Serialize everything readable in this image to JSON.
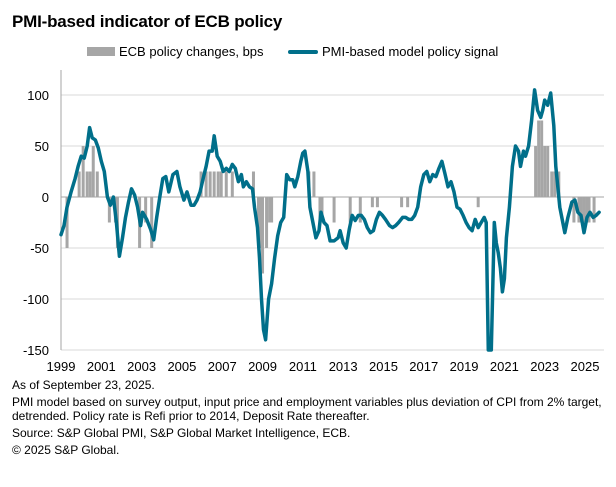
{
  "chart_data": {
    "type": "bar+line",
    "title": "PMI-based indicator of ECB policy",
    "xlabel": "",
    "ylabel": "",
    "ylim": [
      -150,
      125
    ],
    "xlim": [
      1999.0,
      2025.75
    ],
    "yticks": [
      100,
      50,
      0,
      -50,
      -100,
      -150
    ],
    "ytick_labels": [
      "100",
      "50",
      "0",
      "-50",
      "-100",
      "-150"
    ],
    "xticks": [
      1999,
      2001,
      2003,
      2005,
      2007,
      2009,
      2011,
      2013,
      2015,
      2017,
      2019,
      2021,
      2023,
      2025
    ],
    "xtick_labels": [
      "1999",
      "2001",
      "2003",
      "2005",
      "2007",
      "2009",
      "2011",
      "2013",
      "2015",
      "2017",
      "2019",
      "2021",
      "2023",
      "2025"
    ],
    "grid": true,
    "legend": "top",
    "colors": {
      "bars": "#a6a6a6",
      "line": "#006f8a",
      "grid": "#d9d9d9",
      "axis": "#a6a6a6"
    },
    "series": [
      {
        "name": "ECB policy changes, bps",
        "type": "bar",
        "points": [
          [
            1999.3,
            -50
          ],
          [
            1999.9,
            25
          ],
          [
            2000.1,
            50
          ],
          [
            2000.3,
            25
          ],
          [
            2000.45,
            25
          ],
          [
            2000.6,
            50
          ],
          [
            2000.8,
            25
          ],
          [
            2001.4,
            -25
          ],
          [
            2001.7,
            -25
          ],
          [
            2001.8,
            -50
          ],
          [
            2002.9,
            -50
          ],
          [
            2003.2,
            -25
          ],
          [
            2003.5,
            -50
          ],
          [
            2005.95,
            25
          ],
          [
            2006.2,
            25
          ],
          [
            2006.4,
            25
          ],
          [
            2006.6,
            25
          ],
          [
            2006.8,
            25
          ],
          [
            2006.95,
            25
          ],
          [
            2007.2,
            25
          ],
          [
            2007.5,
            25
          ],
          [
            2008.55,
            25
          ],
          [
            2008.8,
            -50
          ],
          [
            2008.9,
            -50
          ],
          [
            2009.0,
            -75
          ],
          [
            2009.2,
            -50
          ],
          [
            2009.35,
            -25
          ],
          [
            2009.45,
            -25
          ],
          [
            2011.3,
            25
          ],
          [
            2011.55,
            25
          ],
          [
            2011.85,
            -25
          ],
          [
            2011.95,
            -25
          ],
          [
            2012.55,
            -25
          ],
          [
            2013.35,
            -25
          ],
          [
            2013.85,
            -25
          ],
          [
            2014.45,
            -10
          ],
          [
            2014.7,
            -10
          ],
          [
            2015.9,
            -10
          ],
          [
            2016.2,
            -10
          ],
          [
            2019.7,
            -10
          ],
          [
            2022.55,
            50
          ],
          [
            2022.7,
            75
          ],
          [
            2022.85,
            75
          ],
          [
            2023.0,
            50
          ],
          [
            2023.15,
            50
          ],
          [
            2023.35,
            25
          ],
          [
            2023.5,
            25
          ],
          [
            2023.7,
            25
          ],
          [
            2024.45,
            -25
          ],
          [
            2024.7,
            -25
          ],
          [
            2024.8,
            -25
          ],
          [
            2024.95,
            -25
          ],
          [
            2025.1,
            -25
          ],
          [
            2025.2,
            -25
          ],
          [
            2025.45,
            -25
          ]
        ]
      },
      {
        "name": "PMI-based model policy signal",
        "type": "line",
        "points": [
          [
            1999.0,
            -37
          ],
          [
            1999.15,
            -28
          ],
          [
            1999.3,
            -10
          ],
          [
            1999.5,
            5
          ],
          [
            1999.7,
            18
          ],
          [
            1999.85,
            30
          ],
          [
            2000.0,
            40
          ],
          [
            2000.15,
            38
          ],
          [
            2000.3,
            50
          ],
          [
            2000.42,
            68
          ],
          [
            2000.55,
            58
          ],
          [
            2000.7,
            56
          ],
          [
            2000.85,
            48
          ],
          [
            2001.0,
            35
          ],
          [
            2001.15,
            25
          ],
          [
            2001.3,
            0
          ],
          [
            2001.45,
            -8
          ],
          [
            2001.6,
            0
          ],
          [
            2001.75,
            -25
          ],
          [
            2001.9,
            -58
          ],
          [
            2002.05,
            -40
          ],
          [
            2002.2,
            -20
          ],
          [
            2002.35,
            -5
          ],
          [
            2002.5,
            8
          ],
          [
            2002.65,
            2
          ],
          [
            2002.8,
            -10
          ],
          [
            2002.95,
            -28
          ],
          [
            2003.05,
            -15
          ],
          [
            2003.25,
            -22
          ],
          [
            2003.45,
            -32
          ],
          [
            2003.6,
            -42
          ],
          [
            2003.75,
            -20
          ],
          [
            2003.9,
            0
          ],
          [
            2004.05,
            18
          ],
          [
            2004.2,
            20
          ],
          [
            2004.35,
            5
          ],
          [
            2004.55,
            22
          ],
          [
            2004.75,
            25
          ],
          [
            2004.9,
            10
          ],
          [
            2005.1,
            -3
          ],
          [
            2005.25,
            5
          ],
          [
            2005.45,
            -8
          ],
          [
            2005.6,
            -8
          ],
          [
            2005.75,
            -3
          ],
          [
            2005.9,
            5
          ],
          [
            2006.05,
            18
          ],
          [
            2006.2,
            30
          ],
          [
            2006.35,
            45
          ],
          [
            2006.5,
            45
          ],
          [
            2006.6,
            60
          ],
          [
            2006.75,
            40
          ],
          [
            2006.9,
            35
          ],
          [
            2007.05,
            25
          ],
          [
            2007.2,
            28
          ],
          [
            2007.35,
            25
          ],
          [
            2007.5,
            32
          ],
          [
            2007.65,
            28
          ],
          [
            2007.8,
            15
          ],
          [
            2007.95,
            22
          ],
          [
            2008.05,
            10
          ],
          [
            2008.2,
            15
          ],
          [
            2008.35,
            10
          ],
          [
            2008.5,
            8
          ],
          [
            2008.6,
            -10
          ],
          [
            2008.75,
            -30
          ],
          [
            2008.85,
            -60
          ],
          [
            2008.95,
            -100
          ],
          [
            2009.05,
            -130
          ],
          [
            2009.15,
            -140
          ],
          [
            2009.3,
            -100
          ],
          [
            2009.45,
            -85
          ],
          [
            2009.6,
            -60
          ],
          [
            2009.75,
            -38
          ],
          [
            2009.9,
            -25
          ],
          [
            2010.05,
            -20
          ],
          [
            2010.2,
            22
          ],
          [
            2010.35,
            17
          ],
          [
            2010.5,
            17
          ],
          [
            2010.6,
            10
          ],
          [
            2010.75,
            20
          ],
          [
            2010.9,
            35
          ],
          [
            2011.0,
            43
          ],
          [
            2011.1,
            45
          ],
          [
            2011.25,
            25
          ],
          [
            2011.35,
            -10
          ],
          [
            2011.5,
            -25
          ],
          [
            2011.65,
            -40
          ],
          [
            2011.8,
            -33
          ],
          [
            2011.9,
            -15
          ],
          [
            2012.05,
            -25
          ],
          [
            2012.2,
            -28
          ],
          [
            2012.35,
            -43
          ],
          [
            2012.55,
            -43
          ],
          [
            2012.75,
            -40
          ],
          [
            2012.85,
            -33
          ],
          [
            2013.0,
            -45
          ],
          [
            2013.15,
            -50
          ],
          [
            2013.3,
            -32
          ],
          [
            2013.45,
            -18
          ],
          [
            2013.6,
            -23
          ],
          [
            2013.75,
            -18
          ],
          [
            2013.9,
            -18
          ],
          [
            2014.05,
            -22
          ],
          [
            2014.2,
            -30
          ],
          [
            2014.35,
            -35
          ],
          [
            2014.5,
            -33
          ],
          [
            2014.65,
            -22
          ],
          [
            2014.8,
            -15
          ],
          [
            2014.95,
            -18
          ],
          [
            2015.1,
            -22
          ],
          [
            2015.3,
            -28
          ],
          [
            2015.45,
            -30
          ],
          [
            2015.6,
            -28
          ],
          [
            2015.75,
            -25
          ],
          [
            2015.95,
            -20
          ],
          [
            2016.1,
            -20
          ],
          [
            2016.25,
            -22
          ],
          [
            2016.4,
            -22
          ],
          [
            2016.55,
            -18
          ],
          [
            2016.7,
            -10
          ],
          [
            2016.85,
            10
          ],
          [
            2017.0,
            22
          ],
          [
            2017.15,
            25
          ],
          [
            2017.3,
            15
          ],
          [
            2017.45,
            22
          ],
          [
            2017.6,
            20
          ],
          [
            2017.75,
            28
          ],
          [
            2017.9,
            35
          ],
          [
            2018.05,
            23
          ],
          [
            2018.2,
            10
          ],
          [
            2018.35,
            15
          ],
          [
            2018.5,
            5
          ],
          [
            2018.65,
            -10
          ],
          [
            2018.8,
            -12
          ],
          [
            2018.95,
            -18
          ],
          [
            2019.1,
            -25
          ],
          [
            2019.25,
            -30
          ],
          [
            2019.4,
            -33
          ],
          [
            2019.55,
            -22
          ],
          [
            2019.7,
            -30
          ],
          [
            2019.85,
            -25
          ],
          [
            2020.0,
            -20
          ],
          [
            2020.1,
            -25
          ],
          [
            2020.2,
            -150
          ],
          [
            2020.35,
            -150
          ],
          [
            2020.5,
            -25
          ],
          [
            2020.6,
            -45
          ],
          [
            2020.7,
            -55
          ],
          [
            2020.8,
            -70
          ],
          [
            2020.9,
            -93
          ],
          [
            2021.0,
            -80
          ],
          [
            2021.1,
            -40
          ],
          [
            2021.25,
            -10
          ],
          [
            2021.4,
            30
          ],
          [
            2021.55,
            50
          ],
          [
            2021.7,
            45
          ],
          [
            2021.8,
            30
          ],
          [
            2021.95,
            45
          ],
          [
            2022.05,
            40
          ],
          [
            2022.2,
            50
          ],
          [
            2022.35,
            75
          ],
          [
            2022.5,
            105
          ],
          [
            2022.65,
            85
          ],
          [
            2022.8,
            78
          ],
          [
            2022.9,
            85
          ],
          [
            2023.0,
            95
          ],
          [
            2023.15,
            90
          ],
          [
            2023.3,
            102
          ],
          [
            2023.45,
            70
          ],
          [
            2023.55,
            30
          ],
          [
            2023.65,
            10
          ],
          [
            2023.75,
            -10
          ],
          [
            2023.9,
            -25
          ],
          [
            2024.0,
            -35
          ],
          [
            2024.15,
            -20
          ],
          [
            2024.35,
            -5
          ],
          [
            2024.5,
            -3
          ],
          [
            2024.65,
            -15
          ],
          [
            2024.8,
            -18
          ],
          [
            2024.95,
            -35
          ],
          [
            2025.1,
            -20
          ],
          [
            2025.25,
            -15
          ],
          [
            2025.4,
            -20
          ],
          [
            2025.55,
            -18
          ],
          [
            2025.7,
            -15
          ]
        ]
      }
    ]
  },
  "header": {
    "title": "PMI-based indicator of ECB policy"
  },
  "legend": {
    "bars_label": "ECB policy changes, bps",
    "line_label": "PMI-based model policy signal"
  },
  "footer": {
    "as_of": "As of September 23, 2025.",
    "note": "PMI model based on survey output, input price and employment variables plus deviation of CPI from 2% target, detrended. Policy rate is Refi prior to 2014, Deposit Rate thereafter.",
    "source": "Source: S&P Global PMI, S&P Global Market Intelligence, ECB.",
    "copyright": "© 2025 S&P Global."
  }
}
